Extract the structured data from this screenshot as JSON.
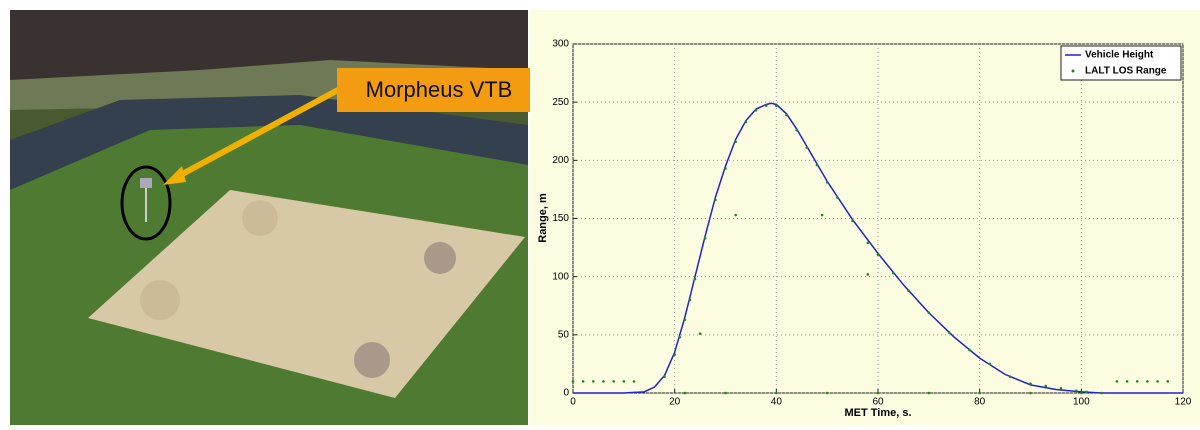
{
  "photo": {
    "label": "Morpheus VTB"
  },
  "chart_data": {
    "type": "line",
    "xlabel": "MET Time, s.",
    "ylabel": "Range, m",
    "xlim": [
      0,
      120
    ],
    "xticks": [
      0,
      20,
      40,
      60,
      80,
      100,
      120
    ],
    "ylim": [
      0,
      300
    ],
    "yticks": [
      0,
      50,
      100,
      150,
      200,
      250,
      300
    ],
    "grid": true,
    "legend": "upper right",
    "series": [
      {
        "name": "Vehicle Height",
        "color": "#2222cc",
        "kind": "line",
        "x": [
          0,
          10,
          14,
          16,
          18,
          20,
          22,
          24,
          26,
          28,
          30,
          32,
          34,
          36,
          38,
          39,
          40,
          42,
          44,
          46,
          48,
          50,
          55,
          60,
          65,
          70,
          75,
          80,
          85,
          90,
          95,
          100,
          104,
          110,
          120
        ],
        "values": [
          0,
          0,
          1,
          5,
          15,
          35,
          65,
          100,
          135,
          168,
          195,
          218,
          234,
          244,
          248,
          249,
          248,
          240,
          227,
          212,
          197,
          182,
          149,
          120,
          93,
          69,
          48,
          30,
          16,
          7,
          3,
          1,
          0,
          0,
          0
        ]
      },
      {
        "name": "LALT LOS Range",
        "color": "#1a8a1a",
        "kind": "scatter",
        "x": [
          0,
          2,
          4,
          6,
          8,
          10,
          12,
          107,
          109,
          111,
          113,
          115,
          117,
          18,
          20,
          21,
          22,
          23,
          24,
          26,
          28,
          30,
          32,
          34,
          36,
          38,
          40,
          42,
          44,
          46,
          48,
          50,
          52,
          55,
          58,
          60,
          63,
          66,
          70,
          74,
          78,
          82,
          86,
          90,
          93,
          96,
          99,
          101,
          32,
          49,
          58,
          25,
          22,
          30,
          40,
          50,
          60,
          70,
          80,
          90,
          100,
          104
        ],
        "values": [
          10,
          10,
          10,
          10,
          10,
          10,
          10,
          10,
          10,
          10,
          10,
          10,
          10,
          14,
          33,
          48,
          63,
          80,
          98,
          133,
          166,
          193,
          216,
          233,
          243,
          247,
          247,
          239,
          226,
          211,
          196,
          181,
          168,
          148,
          129,
          119,
          103,
          88,
          69,
          52,
          37,
          25,
          14,
          8,
          6,
          4,
          2,
          1,
          153,
          153,
          102,
          51,
          0,
          0,
          0,
          0,
          0,
          0,
          0,
          0,
          0,
          0
        ]
      }
    ]
  }
}
